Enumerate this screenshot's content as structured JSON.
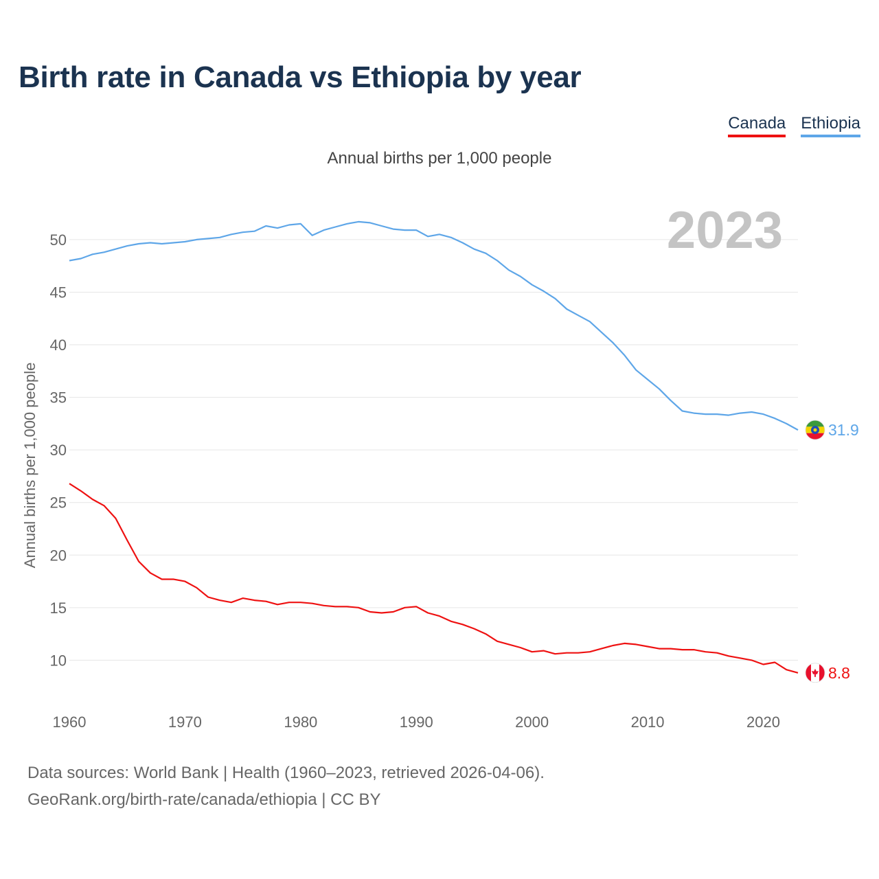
{
  "title": "Birth rate in Canada vs Ethiopia by year",
  "subtitle": "Annual births per 1,000 people",
  "legend": [
    {
      "label": "Canada",
      "color": "#ee1111"
    },
    {
      "label": "Ethiopia",
      "color": "#5ea6e8"
    }
  ],
  "footer": {
    "line1": "Data sources: World Bank | Health (1960–2023, retrieved 2026-04-06).",
    "line2": "GeoRank.org/birth-rate/canada/ethiopia | CC BY"
  },
  "chart_data": {
    "type": "line",
    "title": "Birth rate in Canada vs Ethiopia by year",
    "ylabel": "Annual births per 1,000 people",
    "xlabel": "",
    "year_label": "2023",
    "xlim": [
      1960,
      2023
    ],
    "ylim": [
      6.5,
      54.5
    ],
    "xticks": [
      1960,
      1970,
      1980,
      1990,
      2000,
      2010,
      2020
    ],
    "yticks": [
      10,
      15,
      20,
      25,
      30,
      35,
      40,
      45,
      50
    ],
    "grid": true,
    "legend_position": "top-right",
    "series": [
      {
        "name": "Canada",
        "color": "#ee1111",
        "end_label": "8.8",
        "flag": "canada",
        "x": [
          1960,
          1961,
          1962,
          1963,
          1964,
          1965,
          1966,
          1967,
          1968,
          1969,
          1970,
          1971,
          1972,
          1973,
          1974,
          1975,
          1976,
          1977,
          1978,
          1979,
          1980,
          1981,
          1982,
          1983,
          1984,
          1985,
          1986,
          1987,
          1988,
          1989,
          1990,
          1991,
          1992,
          1993,
          1994,
          1995,
          1996,
          1997,
          1998,
          1999,
          2000,
          2001,
          2002,
          2003,
          2004,
          2005,
          2006,
          2007,
          2008,
          2009,
          2010,
          2011,
          2012,
          2013,
          2014,
          2015,
          2016,
          2017,
          2018,
          2019,
          2020,
          2021,
          2022,
          2023
        ],
        "values": [
          26.8,
          26.1,
          25.3,
          24.7,
          23.5,
          21.4,
          19.4,
          18.3,
          17.7,
          17.7,
          17.5,
          16.9,
          16.0,
          15.7,
          15.5,
          15.9,
          15.7,
          15.6,
          15.3,
          15.5,
          15.5,
          15.4,
          15.2,
          15.1,
          15.1,
          15.0,
          14.6,
          14.5,
          14.6,
          15.0,
          15.1,
          14.5,
          14.2,
          13.7,
          13.4,
          13.0,
          12.5,
          11.8,
          11.5,
          11.2,
          10.8,
          10.9,
          10.6,
          10.7,
          10.7,
          10.8,
          11.1,
          11.4,
          11.6,
          11.5,
          11.3,
          11.1,
          11.1,
          11.0,
          11.0,
          10.8,
          10.7,
          10.4,
          10.2,
          10.0,
          9.6,
          9.8,
          9.1,
          8.8
        ]
      },
      {
        "name": "Ethiopia",
        "color": "#5ea6e8",
        "end_label": "31.9",
        "flag": "ethiopia",
        "x": [
          1960,
          1961,
          1962,
          1963,
          1964,
          1965,
          1966,
          1967,
          1968,
          1969,
          1970,
          1971,
          1972,
          1973,
          1974,
          1975,
          1976,
          1977,
          1978,
          1979,
          1980,
          1981,
          1982,
          1983,
          1984,
          1985,
          1986,
          1987,
          1988,
          1989,
          1990,
          1991,
          1992,
          1993,
          1994,
          1995,
          1996,
          1997,
          1998,
          1999,
          2000,
          2001,
          2002,
          2003,
          2004,
          2005,
          2006,
          2007,
          2008,
          2009,
          2010,
          2011,
          2012,
          2013,
          2014,
          2015,
          2016,
          2017,
          2018,
          2019,
          2020,
          2021,
          2022,
          2023
        ],
        "values": [
          48.0,
          48.2,
          48.6,
          48.8,
          49.1,
          49.4,
          49.6,
          49.7,
          49.6,
          49.7,
          49.8,
          50.0,
          50.1,
          50.2,
          50.5,
          50.7,
          50.8,
          51.3,
          51.1,
          51.4,
          51.5,
          50.4,
          50.9,
          51.2,
          51.5,
          51.7,
          51.6,
          51.3,
          51.0,
          50.9,
          50.9,
          50.3,
          50.5,
          50.2,
          49.7,
          49.1,
          48.7,
          48.0,
          47.1,
          46.5,
          45.7,
          45.1,
          44.4,
          43.4,
          42.8,
          42.2,
          41.2,
          40.2,
          39.0,
          37.6,
          36.7,
          35.8,
          34.7,
          33.7,
          33.5,
          33.4,
          33.4,
          33.3,
          33.5,
          33.6,
          33.4,
          33.0,
          32.5,
          31.9
        ]
      }
    ]
  }
}
